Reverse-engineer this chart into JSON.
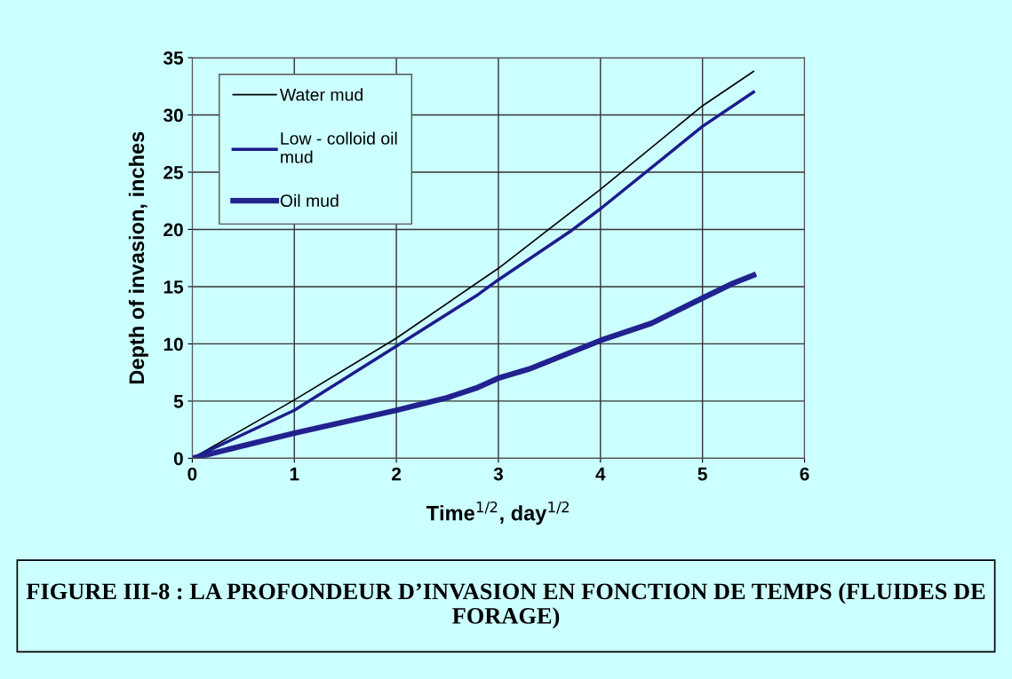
{
  "chart_data": {
    "type": "line",
    "xlabel": "Time$^{1/2}$, day$^{1/2}$",
    "ylabel": "Depth of invasion, inches",
    "xlim": [
      0,
      6
    ],
    "xticks": [
      0,
      1,
      2,
      3,
      4,
      5,
      6
    ],
    "ylim": [
      0,
      35
    ],
    "yticks": [
      0,
      5,
      10,
      15,
      20,
      25,
      30,
      35
    ],
    "grid": true,
    "legend": "top left",
    "series": [
      {
        "name": "Water mud",
        "color": "#000000",
        "x": [
          0,
          1,
          2,
          3,
          4,
          5,
          5.5
        ],
        "values": [
          0,
          5.1,
          10.5,
          16.6,
          23.5,
          30.8,
          33.8
        ]
      },
      {
        "name": "Low - colloid oil mud",
        "color": "#1c1c8c",
        "x": [
          0,
          1,
          2,
          2.8,
          3,
          3.7,
          4,
          5,
          5.5
        ],
        "values": [
          0,
          4.2,
          9.8,
          14.3,
          15.6,
          19.8,
          21.8,
          29,
          32
        ]
      },
      {
        "name": "Oil mud",
        "color": "#22228f",
        "x": [
          0,
          1,
          2,
          2.5,
          2.8,
          3,
          3.3,
          4,
          4.5,
          5,
          5.3,
          5.5
        ],
        "values": [
          0,
          2.2,
          4.2,
          5.3,
          6.2,
          7,
          7.8,
          10.3,
          11.8,
          14,
          15.3,
          16
        ]
      }
    ],
    "annotations": [
      "FIGURE III-8 : LA PROFONDEUR D’INVASION EN FONCTION DE TEMPS (FLUIDES DE FORAGE)"
    ]
  }
}
